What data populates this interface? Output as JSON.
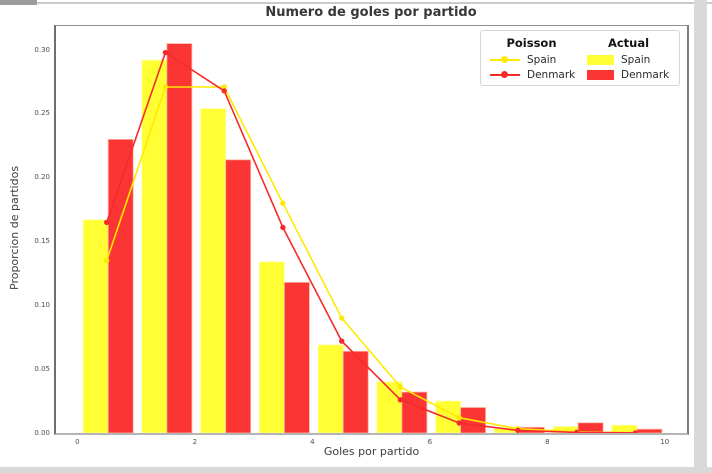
{
  "chart_data": {
    "type": "bar",
    "title": "Numero de goles por partido",
    "xlabel": "Goles por partido",
    "ylabel": "Proporcion de partidos",
    "categories": [
      0,
      1,
      2,
      3,
      4,
      5,
      6,
      7,
      8,
      9
    ],
    "bar_series": [
      {
        "name": "Spain Actual",
        "color": "#FFFF33",
        "edge": "#FFFF99",
        "values": [
          0.167,
          0.292,
          0.254,
          0.134,
          0.069,
          0.04,
          0.025,
          0.004,
          0.005,
          0.006
        ]
      },
      {
        "name": "Denmark Actual",
        "color": "#FB3434",
        "edge": "#FFB3A0",
        "values": [
          0.23,
          0.305,
          0.214,
          0.118,
          0.064,
          0.032,
          0.02,
          0.0045,
          0.008,
          0.003
        ]
      }
    ],
    "line_series": [
      {
        "name": "Spain Poisson",
        "color": "#FFE900",
        "x_offset": 0.5,
        "values": [
          0.135,
          0.271,
          0.271,
          0.18,
          0.09,
          0.036,
          0.012,
          0.0034,
          0.0009,
          0.0002
        ]
      },
      {
        "name": "Denmark Poisson",
        "color": "#F52B2B",
        "x_offset": 0.5,
        "values": [
          0.165,
          0.298,
          0.268,
          0.161,
          0.072,
          0.026,
          0.0078,
          0.002,
          0.0005,
          0.0001
        ]
      }
    ],
    "bar_group_start": 0.1,
    "bar_width": 0.425,
    "xticks": [
      "0",
      "2",
      "4",
      "6",
      "8",
      "10"
    ],
    "xtick_values": [
      0,
      2,
      4,
      6,
      8,
      10
    ],
    "yticks": [
      "0.00",
      "0.05",
      "0.10",
      "0.15",
      "0.20",
      "0.25",
      "0.30"
    ],
    "ytick_values": [
      0,
      0.05,
      0.1,
      0.15,
      0.2,
      0.25,
      0.3
    ],
    "xlim": [
      -0.363,
      10.378
    ],
    "ylim": [
      0,
      0.3188
    ],
    "grid": false,
    "legend_position": "upper right",
    "legend": {
      "columns": [
        {
          "header": "Poisson",
          "style": "line",
          "items": [
            {
              "label": "Spain",
              "color": "#FFE900"
            },
            {
              "label": "Denmark",
              "color": "#F52B2B"
            }
          ]
        },
        {
          "header": "Actual",
          "style": "patch",
          "items": [
            {
              "label": "Spain",
              "color": "#FFFF33"
            },
            {
              "label": "Denmark",
              "color": "#FB3434"
            }
          ]
        }
      ]
    }
  }
}
